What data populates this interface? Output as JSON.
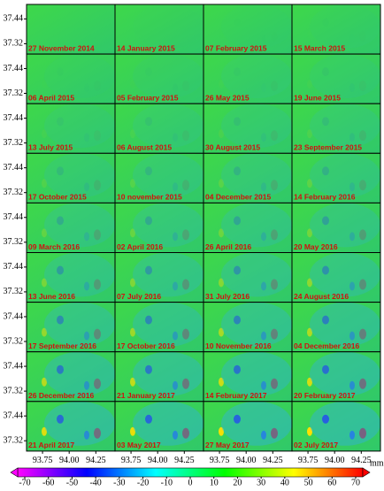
{
  "panels": [
    "27 November 2014",
    "14 January 2015",
    "07 February 2015",
    "15 March 2015",
    "06 April 2015",
    "05 February 2015",
    "26 May 2015",
    "19 June 2015",
    "13 July 2015",
    "06 August 2015",
    "30 August 2015",
    "23 September 2015",
    "17 October 2015",
    "10 november 2015",
    "04 December 2015",
    "14 February 2016",
    "09 March 2016",
    "02 April 2016",
    "26 April 2016",
    "20 May 2016",
    "13 June 2016",
    "07 July 2016",
    "31 July 2016",
    "24 August 2016",
    "17 September 2016",
    "17 October 2016",
    "10 November 2016",
    "04 December 2016",
    "26 December 2016",
    "21 January 2017",
    "14 February 2017",
    "20 February 2017",
    "21 April 2017",
    "03 May 2017",
    "27 May 2017",
    "02 July 2017"
  ],
  "y_axis": {
    "lim": [
      37.27,
      37.51
    ],
    "ticks": [
      37.44,
      37.32
    ]
  },
  "x_axis": {
    "lim": [
      93.6,
      94.43
    ],
    "ticks": [
      93.75,
      {
        "value": 94,
        "label": "94.00"
      },
      94.25
    ]
  },
  "colorbar": {
    "lim": [
      -70,
      70
    ],
    "ticks": [
      -70,
      -60,
      -50,
      -40,
      -30,
      -20,
      -10,
      0,
      10,
      20,
      30,
      40,
      50,
      60,
      70
    ],
    "unit": "mm",
    "colors": [
      "#ff00ff",
      "#0000ff",
      "#00ffff",
      "#00ff00",
      "#ffff00",
      "#ff0000"
    ]
  }
}
